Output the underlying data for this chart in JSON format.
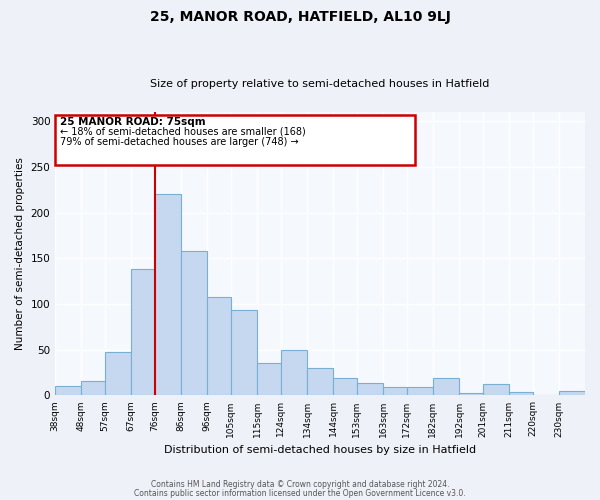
{
  "title": "25, MANOR ROAD, HATFIELD, AL10 9LJ",
  "subtitle": "Size of property relative to semi-detached houses in Hatfield",
  "xlabel": "Distribution of semi-detached houses by size in Hatfield",
  "ylabel": "Number of semi-detached properties",
  "bin_labels": [
    "38sqm",
    "48sqm",
    "57sqm",
    "67sqm",
    "76sqm",
    "86sqm",
    "96sqm",
    "105sqm",
    "115sqm",
    "124sqm",
    "134sqm",
    "144sqm",
    "153sqm",
    "163sqm",
    "172sqm",
    "182sqm",
    "192sqm",
    "201sqm",
    "211sqm",
    "220sqm",
    "230sqm"
  ],
  "bar_heights": [
    10,
    16,
    47,
    138,
    220,
    158,
    108,
    93,
    35,
    50,
    30,
    19,
    14,
    9,
    9,
    19,
    3,
    13,
    4,
    1,
    5
  ],
  "bar_color": "#c5d8f0",
  "bar_edge_color": "#7aafd4",
  "vline_x": 76,
  "vline_color": "#cc0000",
  "annotation_title": "25 MANOR ROAD: 75sqm",
  "annotation_line1": "← 18% of semi-detached houses are smaller (168)",
  "annotation_line2": "79% of semi-detached houses are larger (748) →",
  "annotation_box_edge": "#cc0000",
  "annotation_box_color": "#ffffff",
  "ylim": [
    0,
    310
  ],
  "yticks": [
    0,
    50,
    100,
    150,
    200,
    250,
    300
  ],
  "footer_line1": "Contains HM Land Registry data © Crown copyright and database right 2024.",
  "footer_line2": "Contains public sector information licensed under the Open Government Licence v3.0.",
  "bg_color": "#eef2f8",
  "plot_bg_color": "#f5f8fd"
}
